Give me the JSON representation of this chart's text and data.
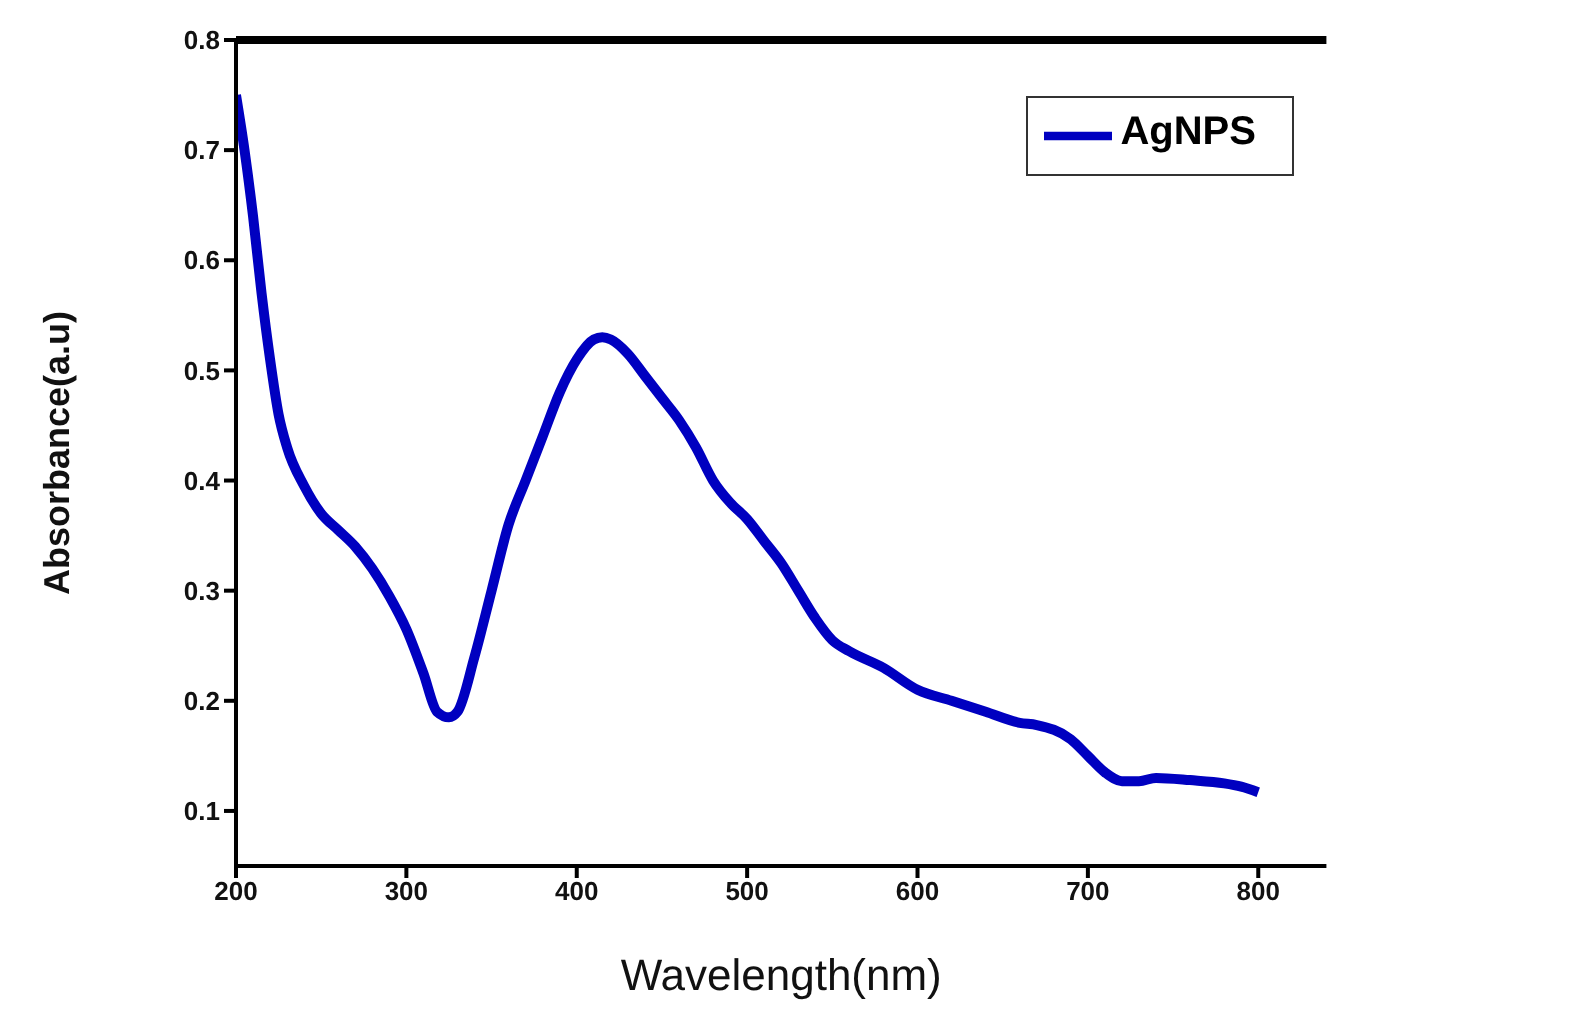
{
  "chart_data": {
    "type": "line",
    "xlabel": "Wavelength(nm)",
    "ylabel": "Absorbance(a.u)",
    "xlim": [
      200,
      840
    ],
    "xticks": [
      200,
      300,
      400,
      500,
      600,
      700,
      800
    ],
    "ylim": [
      0.05,
      0.8
    ],
    "yticks": [
      0.1,
      0.2,
      0.3,
      0.4,
      0.5,
      0.6,
      0.7,
      0.8
    ],
    "grid": false,
    "legend": "top right",
    "marker": "none",
    "line_style": "solid",
    "x": [
      200,
      205,
      210,
      215,
      220,
      225,
      230,
      240,
      250,
      260,
      270,
      280,
      290,
      300,
      310,
      318,
      325,
      330,
      340,
      350,
      360,
      370,
      380,
      390,
      400,
      410,
      415,
      420,
      430,
      440,
      450,
      460,
      470,
      480,
      490,
      500,
      510,
      520,
      530,
      540,
      550,
      560,
      580,
      600,
      620,
      640,
      660,
      670,
      690,
      700,
      710,
      720,
      730,
      740,
      760,
      780,
      790,
      800
    ],
    "series": [
      {
        "name": "AgNPS",
        "color": "#0000c0",
        "values": [
          0.75,
          0.7,
          0.64,
          0.57,
          0.51,
          0.46,
          0.43,
          0.395,
          0.37,
          0.355,
          0.34,
          0.32,
          0.295,
          0.265,
          0.225,
          0.19,
          0.185,
          0.19,
          0.24,
          0.3,
          0.36,
          0.4,
          0.44,
          0.48,
          0.51,
          0.528,
          0.53,
          0.528,
          0.515,
          0.495,
          0.475,
          0.455,
          0.43,
          0.4,
          0.38,
          0.365,
          0.345,
          0.325,
          0.3,
          0.275,
          0.255,
          0.245,
          0.23,
          0.21,
          0.2,
          0.19,
          0.18,
          0.178,
          0.165,
          0.15,
          0.135,
          0.127,
          0.127,
          0.13,
          0.128,
          0.125,
          0.122,
          0.117
        ]
      }
    ]
  }
}
